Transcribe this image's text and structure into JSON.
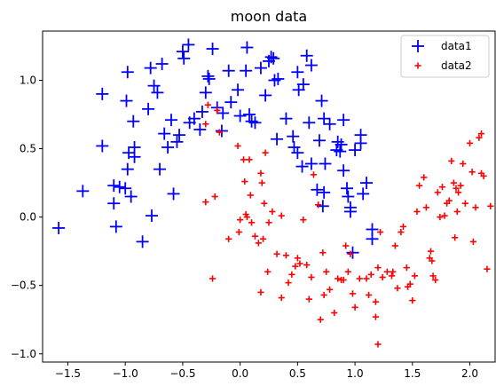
{
  "chart_data": {
    "type": "scatter",
    "title": "moon data",
    "xlabel": "",
    "ylabel": "",
    "xlim": [
      -1.72,
      2.22
    ],
    "ylim": [
      -1.06,
      1.36
    ],
    "xticks": [
      -1.5,
      -1.0,
      -0.5,
      0.0,
      0.5,
      1.0,
      1.5,
      2.0
    ],
    "xtick_labels": [
      "−1.5",
      "−1.0",
      "−0.5",
      "0.0",
      "0.5",
      "1.0",
      "1.5",
      "2.0"
    ],
    "yticks": [
      -1.0,
      -0.5,
      0.0,
      0.5,
      1.0
    ],
    "ytick_labels": [
      "−1.0",
      "−0.5",
      "0.0",
      "0.5",
      "1.0"
    ],
    "grid": false,
    "legend_position": "upper right",
    "series": [
      {
        "name": "data1",
        "color": "#0000ff",
        "marker": "plus-large",
        "points": [
          [
            -1.58,
            -0.08
          ],
          [
            -1.37,
            0.19
          ],
          [
            -1.2,
            0.9
          ],
          [
            -1.2,
            0.52
          ],
          [
            -1.1,
            0.23
          ],
          [
            -1.1,
            0.1
          ],
          [
            -1.08,
            -0.07
          ],
          [
            -1.05,
            0.22
          ],
          [
            -1.0,
            0.21
          ],
          [
            -0.99,
            0.85
          ],
          [
            -0.98,
            1.06
          ],
          [
            -0.98,
            0.35
          ],
          [
            -0.97,
            0.47
          ],
          [
            -0.95,
            0.15
          ],
          [
            -0.93,
            0.7
          ],
          [
            -0.92,
            0.51
          ],
          [
            -0.92,
            0.44
          ],
          [
            -0.85,
            -0.18
          ],
          [
            -0.8,
            0.79
          ],
          [
            -0.78,
            1.09
          ],
          [
            -0.77,
            0.01
          ],
          [
            -0.75,
            0.96
          ],
          [
            -0.72,
            0.91
          ],
          [
            -0.7,
            0.35
          ],
          [
            -0.68,
            1.12
          ],
          [
            -0.66,
            0.61
          ],
          [
            -0.63,
            0.51
          ],
          [
            -0.6,
            0.71
          ],
          [
            -0.58,
            0.17
          ],
          [
            -0.55,
            0.55
          ],
          [
            -0.53,
            0.6
          ],
          [
            -0.5,
            1.21
          ],
          [
            -0.49,
            1.16
          ],
          [
            -0.45,
            1.26
          ],
          [
            -0.44,
            0.69
          ],
          [
            -0.4,
            0.72
          ],
          [
            -0.35,
            0.64
          ],
          [
            -0.33,
            0.77
          ],
          [
            -0.3,
            0.91
          ],
          [
            -0.28,
            1.03
          ],
          [
            -0.27,
            1.01
          ],
          [
            -0.24,
            1.23
          ],
          [
            -0.2,
            0.8
          ],
          [
            -0.16,
            0.63
          ],
          [
            -0.15,
            0.76
          ],
          [
            -0.1,
            1.07
          ],
          [
            -0.08,
            0.84
          ],
          [
            -0.02,
            0.93
          ],
          [
            0.0,
            0.74
          ],
          [
            0.05,
            1.07
          ],
          [
            0.06,
            1.24
          ],
          [
            0.08,
            0.75
          ],
          [
            0.1,
            0.7
          ],
          [
            0.13,
            0.69
          ],
          [
            0.18,
            1.09
          ],
          [
            0.22,
            0.89
          ],
          [
            0.25,
            1.14
          ],
          [
            0.27,
            1.17
          ],
          [
            0.29,
            1.16
          ],
          [
            0.3,
            1.0
          ],
          [
            0.32,
            0.57
          ],
          [
            0.33,
            1.01
          ],
          [
            0.4,
            0.72
          ],
          [
            0.46,
            0.59
          ],
          [
            0.47,
            0.51
          ],
          [
            0.5,
            1.06
          ],
          [
            0.5,
            0.47
          ],
          [
            0.51,
            0.93
          ],
          [
            0.54,
            0.37
          ],
          [
            0.55,
            0.97
          ],
          [
            0.58,
            1.18
          ],
          [
            0.6,
            0.69
          ],
          [
            0.62,
            1.11
          ],
          [
            0.62,
            0.39
          ],
          [
            0.67,
            0.2
          ],
          [
            0.69,
            0.56
          ],
          [
            0.71,
            0.85
          ],
          [
            0.72,
            0.08
          ],
          [
            0.73,
            0.72
          ],
          [
            0.73,
            0.18
          ],
          [
            0.74,
            0.39
          ],
          [
            0.78,
            0.68
          ],
          [
            0.84,
            0.49
          ],
          [
            0.85,
            0.55
          ],
          [
            0.87,
            0.48
          ],
          [
            0.88,
            0.53
          ],
          [
            0.9,
            0.71
          ],
          [
            0.9,
            0.34
          ],
          [
            0.93,
            0.21
          ],
          [
            0.94,
            0.15
          ],
          [
            0.96,
            0.07
          ],
          [
            0.96,
            0.04
          ],
          [
            0.98,
            -0.26
          ],
          [
            1.0,
            0.49
          ],
          [
            1.05,
            0.54
          ],
          [
            1.05,
            0.6
          ],
          [
            1.07,
            0.17
          ],
          [
            1.1,
            0.25
          ],
          [
            1.15,
            -0.16
          ],
          [
            1.15,
            -0.09
          ]
        ]
      },
      {
        "name": "data2",
        "color": "#ff0000",
        "marker": "plus-small",
        "points": [
          [
            -0.3,
            0.68
          ],
          [
            -0.28,
            0.82
          ],
          [
            -0.3,
            0.11
          ],
          [
            -0.24,
            -0.45
          ],
          [
            -0.22,
            0.15
          ],
          [
            -0.2,
            0.78
          ],
          [
            -0.18,
            0.62
          ],
          [
            -0.1,
            -0.16
          ],
          [
            -0.02,
            0.52
          ],
          [
            -0.01,
            -0.11
          ],
          [
            0.0,
            -0.02
          ],
          [
            0.03,
            0.42
          ],
          [
            0.04,
            0.26
          ],
          [
            0.05,
            0.02
          ],
          [
            0.06,
            0.0
          ],
          [
            0.08,
            0.42
          ],
          [
            0.09,
            0.16
          ],
          [
            0.1,
            -0.04
          ],
          [
            0.13,
            -0.14
          ],
          [
            0.16,
            -0.19
          ],
          [
            0.18,
            -0.55
          ],
          [
            0.18,
            0.32
          ],
          [
            0.19,
            0.25
          ],
          [
            0.2,
            -0.16
          ],
          [
            0.21,
            0.1
          ],
          [
            0.22,
            0.47
          ],
          [
            0.24,
            -0.4
          ],
          [
            0.25,
            -0.04
          ],
          [
            0.28,
            0.04
          ],
          [
            0.32,
            -0.27
          ],
          [
            0.36,
            0.01
          ],
          [
            0.36,
            -0.59
          ],
          [
            0.4,
            -0.28
          ],
          [
            0.42,
            -0.48
          ],
          [
            0.45,
            -0.42
          ],
          [
            0.48,
            -0.36
          ],
          [
            0.5,
            -0.3
          ],
          [
            0.52,
            -0.34
          ],
          [
            0.55,
            -0.02
          ],
          [
            0.58,
            -0.35
          ],
          [
            0.6,
            -0.6
          ],
          [
            0.62,
            -0.44
          ],
          [
            0.64,
            0.31
          ],
          [
            0.68,
            0.09
          ],
          [
            0.7,
            -0.75
          ],
          [
            0.72,
            -0.26
          ],
          [
            0.73,
            -0.57
          ],
          [
            0.75,
            -0.4
          ],
          [
            0.78,
            -0.53
          ],
          [
            0.82,
            -0.7
          ],
          [
            0.85,
            -0.45
          ],
          [
            0.88,
            -0.46
          ],
          [
            0.9,
            -0.46
          ],
          [
            0.92,
            -0.21
          ],
          [
            0.94,
            -0.4
          ],
          [
            0.96,
            -0.27
          ],
          [
            0.98,
            -0.56
          ],
          [
            1.0,
            -0.66
          ],
          [
            1.04,
            -0.45
          ],
          [
            1.1,
            -0.45
          ],
          [
            1.12,
            -0.57
          ],
          [
            1.14,
            -0.42
          ],
          [
            1.18,
            -0.62
          ],
          [
            1.18,
            -0.73
          ],
          [
            1.2,
            -0.37
          ],
          [
            1.2,
            -0.93
          ],
          [
            1.22,
            -0.11
          ],
          [
            1.24,
            -0.44
          ],
          [
            1.28,
            -0.4
          ],
          [
            1.32,
            -0.43
          ],
          [
            1.33,
            -0.4
          ],
          [
            1.35,
            -0.21
          ],
          [
            1.37,
            -0.52
          ],
          [
            1.4,
            -0.11
          ],
          [
            1.42,
            -0.07
          ],
          [
            1.45,
            -0.37
          ],
          [
            1.46,
            -0.51
          ],
          [
            1.48,
            -0.49
          ],
          [
            1.5,
            -0.61
          ],
          [
            1.52,
            -0.43
          ],
          [
            1.54,
            0.04
          ],
          [
            1.56,
            0.23
          ],
          [
            1.6,
            0.29
          ],
          [
            1.62,
            0.07
          ],
          [
            1.65,
            -0.3
          ],
          [
            1.66,
            -0.25
          ],
          [
            1.67,
            -0.32
          ],
          [
            1.68,
            -0.43
          ],
          [
            1.7,
            -0.46
          ],
          [
            1.72,
            0.18
          ],
          [
            1.74,
            0.0
          ],
          [
            1.76,
            0.22
          ],
          [
            1.78,
            0.01
          ],
          [
            1.8,
            0.1
          ],
          [
            1.82,
            0.12
          ],
          [
            1.84,
            0.41
          ],
          [
            1.86,
            0.25
          ],
          [
            1.87,
            -0.15
          ],
          [
            1.88,
            0.21
          ],
          [
            1.89,
            0.04
          ],
          [
            1.9,
            0.18
          ],
          [
            1.92,
            0.23
          ],
          [
            1.94,
            0.39
          ],
          [
            1.96,
            0.1
          ],
          [
            2.0,
            0.54
          ],
          [
            2.02,
            0.33
          ],
          [
            2.03,
            -0.18
          ],
          [
            2.05,
            0.07
          ],
          [
            2.08,
            0.58
          ],
          [
            2.1,
            0.61
          ],
          [
            2.1,
            0.32
          ],
          [
            2.12,
            0.3
          ],
          [
            2.15,
            -0.38
          ],
          [
            2.18,
            0.08
          ]
        ]
      }
    ]
  }
}
